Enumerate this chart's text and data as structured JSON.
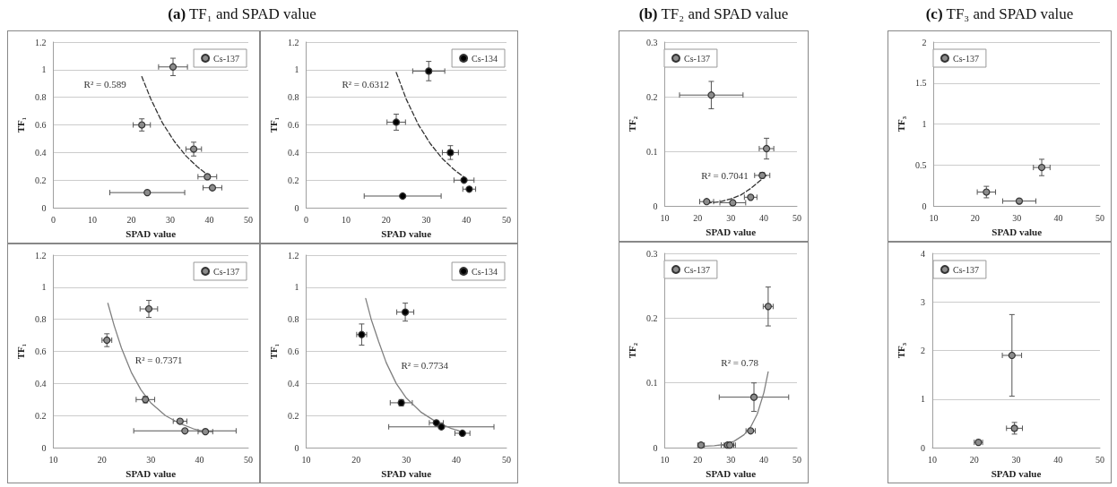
{
  "chart_data": [
    {
      "type": "scatter",
      "title": "(a) TF₁ and SPAD value",
      "xlabel": "SPAD value",
      "ylabel": "TF₁",
      "xlim": [
        0,
        50
      ],
      "xticks": [
        0,
        10,
        20,
        30,
        40,
        50
      ],
      "ylim": [
        0,
        1.2
      ],
      "yticks": [
        0,
        0.2,
        0.4,
        0.6,
        0.8,
        1,
        1.2
      ],
      "grid": "y",
      "legend": "top right",
      "marker": "circle",
      "series": [
        {
          "name": "Cs-137",
          "color": "#8c8c8c",
          "x": [
            30.7,
            22.7,
            36.0,
            39.5,
            40.8,
            24.1
          ],
          "values": [
            1.02,
            0.6,
            0.425,
            0.225,
            0.145,
            0.11
          ],
          "errors": [
            0.063,
            0.044,
            0.05,
            null,
            null,
            null
          ],
          "xerrors": [
            3.7,
            2.2,
            2.0,
            2.4,
            2.4,
            9.6
          ]
        },
        {
          "type": "line",
          "marker": "none",
          "color": "#333333",
          "line_style": "dashed",
          "x": [
            22.7,
            25,
            28,
            31,
            34,
            37,
            39.5
          ],
          "values": [
            0.95,
            0.788,
            0.614,
            0.482,
            0.376,
            0.295,
            0.24
          ]
        }
      ],
      "annotations": [
        "R² = 0.589"
      ]
    },
    {
      "type": "scatter",
      "xlabel": "SPAD value",
      "ylabel": "TF₁",
      "xlim": [
        0,
        50
      ],
      "xticks": [
        0,
        10,
        20,
        30,
        40,
        50
      ],
      "ylim": [
        0,
        1.2
      ],
      "yticks": [
        0,
        0.2,
        0.4,
        0.6,
        0.8,
        1,
        1.2
      ],
      "grid": "y",
      "legend": "top right",
      "marker": "circle",
      "series": [
        {
          "name": "Cs-134",
          "color": "#000000",
          "x": [
            30.6,
            22.5,
            36.0,
            39.4,
            40.7,
            24.1
          ],
          "values": [
            0.99,
            0.62,
            0.4,
            0.2,
            0.135,
            0.085
          ],
          "errors": [
            0.07,
            0.058,
            0.05,
            null,
            null,
            null
          ],
          "xerrors": [
            4,
            2.3,
            2,
            2.5,
            1.6,
            9.6
          ]
        },
        {
          "type": "line",
          "marker": "none",
          "color": "#333333",
          "line_style": "dashed",
          "x": [
            22.5,
            25,
            28,
            31,
            34,
            37,
            39.5
          ],
          "values": [
            0.98,
            0.786,
            0.603,
            0.464,
            0.356,
            0.274,
            0.22
          ]
        }
      ],
      "annotations": [
        "R² = 0.6312"
      ]
    },
    {
      "type": "scatter",
      "xlabel": "SPAD value",
      "ylabel": "TF₁",
      "xlim": [
        10,
        50
      ],
      "xticks": [
        10,
        20,
        30,
        40,
        50
      ],
      "ylim": [
        0,
        1.2
      ],
      "yticks": [
        0,
        0.2,
        0.4,
        0.6,
        0.8,
        1,
        1.2
      ],
      "grid": "y",
      "legend": "top right",
      "marker": "circle",
      "series": [
        {
          "name": "Cs-137",
          "color": "#8c8c8c",
          "x": [
            29.6,
            21.0,
            28.9,
            36.0,
            37.0,
            41.2
          ],
          "values": [
            0.865,
            0.67,
            0.3,
            0.165,
            0.105,
            0.1
          ],
          "errors": [
            0.053,
            0.04,
            0.02,
            null,
            null,
            null
          ],
          "xerrors": [
            1.8,
            1,
            1.9,
            1.4,
            10.5,
            1.5
          ]
        },
        {
          "type": "line",
          "marker": "none",
          "color": "#808080",
          "line_style": "solid",
          "x": [
            21.2,
            22.5,
            24,
            26,
            28,
            30,
            33,
            36,
            39,
            41
          ],
          "values": [
            0.9,
            0.76,
            0.62,
            0.47,
            0.36,
            0.28,
            0.2,
            0.15,
            0.115,
            0.1
          ]
        }
      ],
      "annotations": [
        "R² = 0.7371"
      ]
    },
    {
      "type": "scatter",
      "xlabel": "SPAD value",
      "ylabel": "TF₁",
      "xlim": [
        10,
        50
      ],
      "xticks": [
        10,
        20,
        30,
        40,
        50
      ],
      "ylim": [
        0,
        1.2
      ],
      "yticks": [
        0,
        0.2,
        0.4,
        0.6,
        0.8,
        1,
        1.2
      ],
      "grid": "y",
      "legend": "top right",
      "marker": "circle",
      "series": [
        {
          "name": "Cs-134",
          "color": "#000000",
          "x": [
            29.8,
            21.1,
            29.0,
            36.0,
            37.0,
            41.2
          ],
          "values": [
            0.845,
            0.705,
            0.28,
            0.155,
            0.13,
            0.09
          ],
          "errors": [
            0.056,
            0.066,
            0.02,
            null,
            null,
            null
          ],
          "xerrors": [
            1.7,
            1,
            2.2,
            1.4,
            10.5,
            1.5
          ]
        },
        {
          "type": "line",
          "marker": "none",
          "color": "#808080",
          "line_style": "solid",
          "x": [
            21.9,
            23,
            24.5,
            26,
            28,
            30,
            33,
            36,
            39,
            41
          ],
          "values": [
            0.93,
            0.8,
            0.66,
            0.53,
            0.4,
            0.31,
            0.22,
            0.16,
            0.12,
            0.1
          ]
        }
      ],
      "annotations": [
        "R² = 0.7734"
      ]
    },
    {
      "type": "scatter",
      "title": "(b) TF₂ and SPAD value",
      "xlabel": "SPAD value",
      "ylabel": "TF₂",
      "xlim": [
        10,
        50
      ],
      "xticks": [
        10,
        20,
        30,
        40,
        50
      ],
      "ylim": [
        0,
        0.3
      ],
      "yticks": [
        0,
        0.1,
        0.2,
        0.3
      ],
      "grid": "y",
      "legend": "top left",
      "marker": "circle",
      "series": [
        {
          "name": "Cs-137",
          "color": "#8c8c8c",
          "x": [
            24.1,
            40.8,
            39.5,
            36.0,
            22.7,
            30.6
          ],
          "values": [
            0.203,
            0.105,
            0.056,
            0.016,
            0.008,
            0.006
          ],
          "errors": [
            0.025,
            0.019,
            0.005,
            null,
            null,
            null
          ],
          "xerrors": [
            9.6,
            2.2,
            2.3,
            1.9,
            2.1,
            3.9
          ]
        },
        {
          "type": "line",
          "marker": "none",
          "color": "#333333",
          "line_style": "dashed",
          "x": [
            22.7,
            27,
            30,
            33,
            36,
            38,
            40.7
          ],
          "values": [
            0.005,
            0.008,
            0.013,
            0.02,
            0.032,
            0.042,
            0.056
          ]
        }
      ],
      "annotations": [
        "R² = 0.7041"
      ]
    },
    {
      "type": "scatter",
      "xlabel": "SPAD value",
      "ylabel": "TF₂",
      "xlim": [
        10,
        50
      ],
      "xticks": [
        10,
        20,
        30,
        40,
        50
      ],
      "ylim": [
        0,
        0.3
      ],
      "yticks": [
        0,
        0.1,
        0.2,
        0.3
      ],
      "grid": "y",
      "legend": "top left",
      "marker": "circle",
      "series": [
        {
          "name": "Cs-137",
          "color": "#8c8c8c",
          "x": [
            41.3,
            37.0,
            36.0,
            21.0,
            29.0,
            29.7
          ],
          "values": [
            0.218,
            0.078,
            0.026,
            0.004,
            0.004,
            0.004
          ],
          "errors": [
            0.03,
            0.022,
            null,
            null,
            null,
            null
          ],
          "xerrors": [
            1.5,
            10.5,
            1.4,
            1,
            1.9,
            1.7
          ]
        },
        {
          "type": "line",
          "marker": "none",
          "color": "#808080",
          "line_style": "solid",
          "x": [
            21,
            25,
            28,
            31,
            34,
            36,
            38,
            40,
            41.3
          ],
          "values": [
            0.002,
            0.003,
            0.005,
            0.01,
            0.02,
            0.032,
            0.052,
            0.085,
            0.117
          ]
        }
      ],
      "annotations": [
        "R² = 0.78"
      ]
    },
    {
      "type": "scatter",
      "title": "(c) TF₃ and SPAD value",
      "xlabel": "SPAD value",
      "ylabel": "TF₃",
      "xlim": [
        10,
        50
      ],
      "xticks": [
        10,
        20,
        30,
        40,
        50
      ],
      "ylim": [
        0,
        2
      ],
      "yticks": [
        0,
        0.5,
        1,
        1.5,
        2
      ],
      "grid": "y",
      "legend": "top left",
      "marker": "circle",
      "series": [
        {
          "name": "Cs-137",
          "color": "#8c8c8c",
          "x": [
            36.0,
            22.7,
            30.6
          ],
          "values": [
            0.47,
            0.17,
            0.06
          ],
          "errors": [
            0.1,
            0.07,
            null
          ],
          "xerrors": [
            2,
            2.2,
            4
          ]
        }
      ]
    },
    {
      "type": "scatter",
      "xlabel": "SPAD value",
      "ylabel": "TF₃",
      "xlim": [
        10,
        50
      ],
      "xticks": [
        10,
        20,
        30,
        40,
        50
      ],
      "ylim": [
        0,
        4
      ],
      "yticks": [
        0,
        1,
        2,
        3,
        4
      ],
      "grid": "y",
      "legend": "top left",
      "marker": "circle",
      "series": [
        {
          "name": "Cs-137",
          "color": "#8c8c8c",
          "x": [
            29.0,
            29.6,
            21.0
          ],
          "values": [
            1.9,
            0.4,
            0.11
          ],
          "errors": [
            0.84,
            0.12,
            null
          ],
          "xerrors": [
            2.3,
            1.9,
            1
          ]
        }
      ]
    }
  ]
}
